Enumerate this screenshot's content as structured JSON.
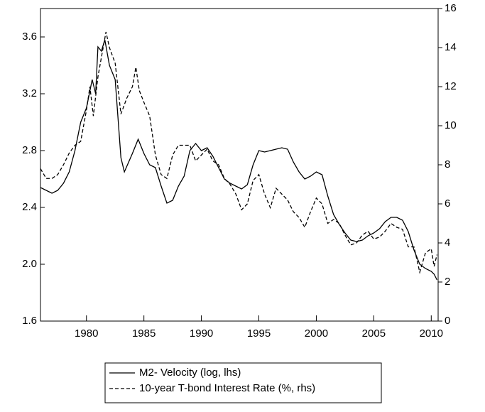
{
  "chart_data": {
    "type": "line",
    "xlim": [
      1976,
      2010.6
    ],
    "xticks": [
      1980,
      1985,
      1990,
      1995,
      2000,
      2005,
      2010
    ],
    "ylim": [
      1.6,
      3.8
    ],
    "yticks": [
      1.6,
      {
        "value": 2,
        "label": "2.0"
      },
      2.4,
      2.8,
      3.2,
      3.6
    ],
    "y2lim": [
      0,
      16
    ],
    "y2ticks": [
      0,
      2,
      4,
      6,
      8,
      10,
      12,
      14,
      16
    ],
    "legend": "bottom",
    "series": [
      {
        "name": "M2- Velocity (log, lhs)",
        "color": "#000000",
        "dash": "solid",
        "axis": "y",
        "x": [
          1976,
          1977,
          1977.5,
          1978,
          1978.5,
          1979,
          1979.5,
          1980,
          1980.5,
          1980.8,
          1981,
          1981.3,
          1981.6,
          1982,
          1982.5,
          1983,
          1983.3,
          1984,
          1984.5,
          1985,
          1985.5,
          1986,
          1986.5,
          1987,
          1987.5,
          1988,
          1988.5,
          1989,
          1989.5,
          1990,
          1990.5,
          1991,
          1991.5,
          1992,
          1992.5,
          1993,
          1993.5,
          1994,
          1994.5,
          1995,
          1995.5,
          1996,
          1996.5,
          1997,
          1997.5,
          1998,
          1998.5,
          1999,
          1999.5,
          2000,
          2000.5,
          2001,
          2001.5,
          2002,
          2002.5,
          2003,
          2003.5,
          2004,
          2004.5,
          2005,
          2005.5,
          2006,
          2006.5,
          2007,
          2007.5,
          2008,
          2008.5,
          2009,
          2009.5,
          2010,
          2010.25,
          2010.5
        ],
        "values": [
          2.54,
          2.5,
          2.52,
          2.57,
          2.65,
          2.8,
          3.0,
          3.1,
          3.3,
          3.2,
          3.53,
          3.5,
          3.58,
          3.4,
          3.3,
          2.75,
          2.65,
          2.78,
          2.88,
          2.78,
          2.7,
          2.68,
          2.55,
          2.43,
          2.45,
          2.55,
          2.62,
          2.8,
          2.85,
          2.8,
          2.82,
          2.76,
          2.68,
          2.6,
          2.57,
          2.55,
          2.53,
          2.56,
          2.7,
          2.8,
          2.79,
          2.8,
          2.81,
          2.82,
          2.81,
          2.72,
          2.65,
          2.6,
          2.62,
          2.65,
          2.63,
          2.48,
          2.35,
          2.28,
          2.22,
          2.17,
          2.16,
          2.17,
          2.2,
          2.22,
          2.25,
          2.3,
          2.33,
          2.33,
          2.31,
          2.23,
          2.1,
          2.0,
          1.97,
          1.95,
          1.93,
          1.89
        ]
      },
      {
        "name": "10-year T-bond Interest Rate (%, rhs)",
        "color": "#000000",
        "dash": "dashed",
        "axis": "y2",
        "x": [
          1976,
          1976.5,
          1977,
          1977.5,
          1978,
          1978.5,
          1979,
          1979.5,
          1980,
          1980.3,
          1980.6,
          1981,
          1981.3,
          1981.7,
          1982,
          1982.5,
          1983,
          1983.5,
          1984,
          1984.3,
          1984.6,
          1985,
          1985.5,
          1986,
          1986.5,
          1987,
          1987.5,
          1988,
          1988.5,
          1989,
          1989.5,
          1990,
          1990.5,
          1991,
          1991.5,
          1992,
          1992.5,
          1993,
          1993.5,
          1994,
          1994.5,
          1995,
          1995.5,
          1996,
          1996.5,
          1997,
          1997.5,
          1998,
          1998.5,
          1999,
          1999.5,
          2000,
          2000.5,
          2001,
          2001.5,
          2002,
          2002.5,
          2003,
          2003.5,
          2004,
          2004.5,
          2005,
          2005.5,
          2006,
          2006.5,
          2007,
          2007.5,
          2008,
          2008.5,
          2009,
          2009.5,
          2010,
          2010.25,
          2010.5
        ],
        "values": [
          7.8,
          7.3,
          7.3,
          7.5,
          8.0,
          8.6,
          9.0,
          9.2,
          10.8,
          12.0,
          10.5,
          12.5,
          13.5,
          14.8,
          14.0,
          13.2,
          10.6,
          11.4,
          12.0,
          13.0,
          11.8,
          11.2,
          10.5,
          8.5,
          7.5,
          7.3,
          8.5,
          9.0,
          9.0,
          9.0,
          8.2,
          8.5,
          8.8,
          8.2,
          8.0,
          7.3,
          7.0,
          6.5,
          5.7,
          6.0,
          7.2,
          7.5,
          6.5,
          5.8,
          6.8,
          6.5,
          6.2,
          5.6,
          5.3,
          4.8,
          5.6,
          6.3,
          6.0,
          5.0,
          5.2,
          5.0,
          4.4,
          3.9,
          4.0,
          4.4,
          4.6,
          4.2,
          4.3,
          4.6,
          5.0,
          4.8,
          4.7,
          3.8,
          3.8,
          2.5,
          3.5,
          3.7,
          2.8,
          3.4
        ]
      }
    ]
  }
}
